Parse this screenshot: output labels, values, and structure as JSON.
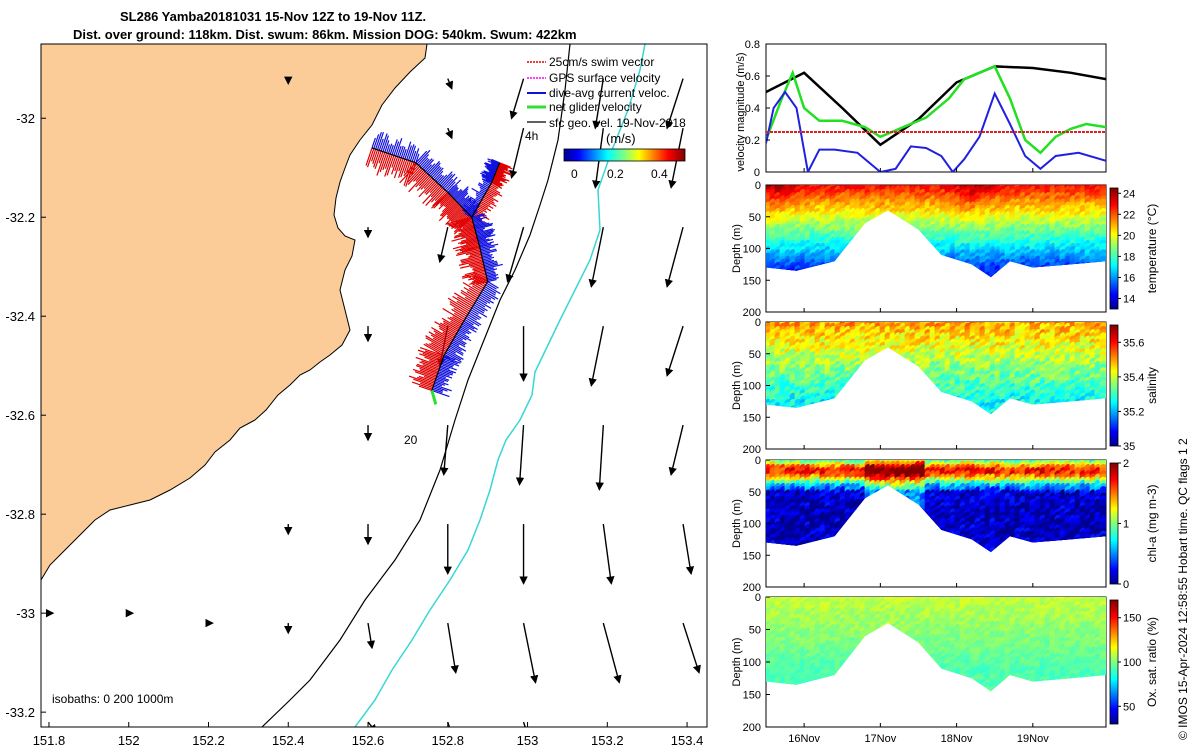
{
  "header": {
    "title_line1": "SL286 Yamba20181031 15-Nov 12Z to 19-Nov 11Z.",
    "title_line2": "Dist. over ground: 118km. Dist. swum: 86km. Mission DOG: 540km. Swum: 422km"
  },
  "credit": "© IMOS 15-Apr-2024 12:58:55 Hobart time. QC flags 1  2",
  "colors": {
    "land": "#fbcb98",
    "isobath_200": "#000000",
    "isobath_1000": "#39d6d6",
    "swim_vector": "#e00000",
    "dive_avg": "#1010e0",
    "net_velocity": "#30e030",
    "gps": "#ff00ff"
  },
  "chart_data": [
    {
      "type": "map",
      "name": "glider track map",
      "xlim": [
        151.78,
        153.45
      ],
      "ylim": [
        -33.23,
        -31.85
      ],
      "x_ticks": [
        "151.8",
        "152",
        "152.2",
        "152.4",
        "152.6",
        "152.8",
        "153",
        "153.2",
        "153.4"
      ],
      "y_ticks": [
        "-32",
        "-32.2",
        "-32.4",
        "-32.6",
        "-32.8",
        "-33",
        "-33.2"
      ],
      "legend": {
        "placement": "top-right",
        "entries": [
          "25cm/s swim vector",
          "GPS surface velocity",
          "dive-avg current veloc.",
          "net glider velocity",
          "sfc geo. vel. 19-Nov-2018"
        ]
      },
      "colorbar": {
        "title": "(m/s)",
        "ticks": [
          "0",
          "0.2",
          "0.4"
        ],
        "range": [
          0,
          0.5
        ]
      },
      "annotations": [
        {
          "text": "4h",
          "lon": 152.97,
          "lat": -32.02
        },
        {
          "text": "20",
          "lon": 152.7,
          "lat": -32.65
        }
      ],
      "isobath_label": "isobaths: 0   200  1000m",
      "track": [
        {
          "lon": 152.61,
          "lat": -32.06
        },
        {
          "lon": 152.72,
          "lat": -32.09
        },
        {
          "lon": 152.8,
          "lat": -32.15
        },
        {
          "lon": 152.86,
          "lat": -32.2
        },
        {
          "lon": 152.88,
          "lat": -32.26
        },
        {
          "lon": 152.9,
          "lat": -32.33
        },
        {
          "lon": 152.84,
          "lat": -32.41
        },
        {
          "lon": 152.79,
          "lat": -32.48
        },
        {
          "lon": 152.76,
          "lat": -32.55
        }
      ],
      "track_branch": [
        {
          "lon": 152.86,
          "lat": -32.2
        },
        {
          "lon": 152.91,
          "lat": -32.13
        },
        {
          "lon": 152.93,
          "lat": -32.09
        }
      ],
      "geostrophic_vectors": [
        {
          "lon": 152.4,
          "lat": -31.92,
          "dlon": 0.0,
          "dlat": -0.01
        },
        {
          "lon": 152.8,
          "lat": -31.92,
          "dlon": 0.01,
          "dlat": -0.02
        },
        {
          "lon": 152.99,
          "lat": -31.92,
          "dlon": -0.03,
          "dlat": -0.08
        },
        {
          "lon": 153.19,
          "lat": -31.92,
          "dlon": -0.02,
          "dlat": -0.1
        },
        {
          "lon": 153.39,
          "lat": -31.92,
          "dlon": -0.04,
          "dlat": -0.1
        },
        {
          "lon": 152.8,
          "lat": -32.02,
          "dlon": 0.01,
          "dlat": -0.02
        },
        {
          "lon": 152.99,
          "lat": -32.02,
          "dlon": -0.03,
          "dlat": -0.1
        },
        {
          "lon": 153.19,
          "lat": -32.02,
          "dlon": -0.02,
          "dlat": -0.12
        },
        {
          "lon": 153.39,
          "lat": -32.02,
          "dlon": -0.03,
          "dlat": -0.12
        },
        {
          "lon": 152.6,
          "lat": -32.22,
          "dlon": 0.0,
          "dlat": -0.02
        },
        {
          "lon": 152.8,
          "lat": -32.22,
          "dlon": -0.02,
          "dlat": -0.07
        },
        {
          "lon": 152.99,
          "lat": -32.22,
          "dlon": -0.04,
          "dlat": -0.11
        },
        {
          "lon": 153.19,
          "lat": -32.22,
          "dlon": -0.03,
          "dlat": -0.12
        },
        {
          "lon": 153.39,
          "lat": -32.22,
          "dlon": -0.04,
          "dlat": -0.12
        },
        {
          "lon": 152.6,
          "lat": -32.42,
          "dlon": 0.0,
          "dlat": -0.03
        },
        {
          "lon": 152.8,
          "lat": -32.42,
          "dlon": -0.02,
          "dlat": -0.08
        },
        {
          "lon": 152.99,
          "lat": -32.42,
          "dlon": 0.0,
          "dlat": -0.11
        },
        {
          "lon": 153.19,
          "lat": -32.42,
          "dlon": -0.03,
          "dlat": -0.12
        },
        {
          "lon": 153.39,
          "lat": -32.42,
          "dlon": -0.04,
          "dlat": -0.1
        },
        {
          "lon": 152.6,
          "lat": -32.62,
          "dlon": 0.0,
          "dlat": -0.03
        },
        {
          "lon": 152.8,
          "lat": -32.62,
          "dlon": -0.01,
          "dlat": -0.1
        },
        {
          "lon": 152.99,
          "lat": -32.62,
          "dlon": -0.01,
          "dlat": -0.12
        },
        {
          "lon": 153.19,
          "lat": -32.62,
          "dlon": -0.01,
          "dlat": -0.13
        },
        {
          "lon": 153.39,
          "lat": -32.62,
          "dlon": -0.03,
          "dlat": -0.1
        },
        {
          "lon": 152.4,
          "lat": -32.82,
          "dlon": 0.0,
          "dlat": -0.02
        },
        {
          "lon": 152.6,
          "lat": -32.82,
          "dlon": 0.0,
          "dlat": -0.04
        },
        {
          "lon": 152.8,
          "lat": -32.82,
          "dlon": 0.0,
          "dlat": -0.1
        },
        {
          "lon": 152.99,
          "lat": -32.82,
          "dlon": 0.0,
          "dlat": -0.12
        },
        {
          "lon": 153.19,
          "lat": -32.82,
          "dlon": 0.02,
          "dlat": -0.12
        },
        {
          "lon": 153.39,
          "lat": -32.82,
          "dlon": 0.02,
          "dlat": -0.1
        },
        {
          "lon": 151.8,
          "lat": -33.0,
          "dlon": 0.01,
          "dlat": 0.0
        },
        {
          "lon": 152.0,
          "lat": -33.0,
          "dlon": 0.01,
          "dlat": 0.0
        },
        {
          "lon": 152.2,
          "lat": -33.02,
          "dlon": 0.01,
          "dlat": 0.0
        },
        {
          "lon": 152.4,
          "lat": -33.02,
          "dlon": 0.0,
          "dlat": -0.02
        },
        {
          "lon": 152.6,
          "lat": -33.02,
          "dlon": 0.01,
          "dlat": -0.05
        },
        {
          "lon": 152.8,
          "lat": -33.02,
          "dlon": 0.02,
          "dlat": -0.1
        },
        {
          "lon": 152.99,
          "lat": -33.02,
          "dlon": 0.03,
          "dlat": -0.12
        },
        {
          "lon": 153.19,
          "lat": -33.02,
          "dlon": 0.04,
          "dlat": -0.12
        },
        {
          "lon": 153.39,
          "lat": -33.02,
          "dlon": 0.04,
          "dlat": -0.1
        },
        {
          "lon": 152.6,
          "lat": -33.22,
          "dlon": 0.02,
          "dlat": -0.02
        },
        {
          "lon": 152.8,
          "lat": -33.22,
          "dlon": 0.02,
          "dlat": -0.05
        },
        {
          "lon": 152.99,
          "lat": -33.22,
          "dlon": 0.02,
          "dlat": -0.05
        }
      ]
    },
    {
      "type": "line",
      "name": "velocity time series",
      "ylabel": "velocity magnitude (m/s)",
      "ylim": [
        0,
        0.8
      ],
      "y_ticks": [
        "0",
        "0.2",
        "0.4",
        "0.6",
        "0.8"
      ],
      "xlim": [
        15.5,
        19.96
      ],
      "x_ticks": [
        "16Nov",
        "17Nov",
        "18Nov",
        "19Nov"
      ],
      "x_tick_values": [
        16,
        17,
        18,
        19
      ],
      "series": [
        {
          "color": "#000000",
          "x": [
            15.5,
            16.0,
            16.5,
            17.0,
            17.5,
            18.0,
            18.5,
            19.0,
            19.5,
            19.96
          ],
          "y": [
            0.5,
            0.62,
            0.4,
            0.17,
            0.33,
            0.56,
            0.66,
            0.65,
            0.62,
            0.58
          ]
        },
        {
          "color": "#22e022",
          "x": [
            15.5,
            15.7,
            15.85,
            16.0,
            16.2,
            16.5,
            16.8,
            17.0,
            17.3,
            17.6,
            17.9,
            18.1,
            18.3,
            18.5,
            18.7,
            18.9,
            19.1,
            19.3,
            19.5,
            19.7,
            19.96
          ],
          "y": [
            0.2,
            0.45,
            0.62,
            0.4,
            0.32,
            0.32,
            0.28,
            0.22,
            0.28,
            0.34,
            0.46,
            0.58,
            0.62,
            0.66,
            0.46,
            0.2,
            0.12,
            0.22,
            0.27,
            0.3,
            0.28
          ]
        },
        {
          "color": "#2020e0",
          "x": [
            15.5,
            15.6,
            15.75,
            15.9,
            16.05,
            16.2,
            16.4,
            16.7,
            17.0,
            17.2,
            17.4,
            17.6,
            17.8,
            17.95,
            18.1,
            18.3,
            18.5,
            18.7,
            18.9,
            19.1,
            19.3,
            19.6,
            19.96
          ],
          "y": [
            0.18,
            0.4,
            0.5,
            0.4,
            0.0,
            0.14,
            0.14,
            0.12,
            0.0,
            0.02,
            0.16,
            0.15,
            0.1,
            0.0,
            0.08,
            0.22,
            0.49,
            0.3,
            0.1,
            0.02,
            0.1,
            0.12,
            0.07
          ]
        },
        {
          "color": "#e02020",
          "x": [
            15.5,
            19.96
          ],
          "y": [
            0.25,
            0.25
          ]
        }
      ]
    },
    {
      "type": "heatmap",
      "name": "temperature section",
      "ylabel": "Depth (m)",
      "colorbar_label": "temperature (°C)",
      "colorbar_ticks": [
        "14",
        "16",
        "18",
        "20",
        "22",
        "24"
      ],
      "ylim": [
        200,
        0
      ],
      "y_ticks": [
        "0",
        "50",
        "100",
        "150",
        "200"
      ],
      "xlim": [
        15.5,
        19.96
      ],
      "x_ticks": [
        "16Nov",
        "17Nov",
        "18Nov",
        "19Nov"
      ],
      "dive_depth_profile": {
        "x": [
          15.5,
          15.9,
          16.4,
          16.8,
          17.1,
          17.5,
          17.8,
          18.2,
          18.45,
          18.7,
          19.0,
          19.5,
          19.96
        ],
        "y": [
          130,
          135,
          120,
          60,
          40,
          70,
          110,
          125,
          145,
          120,
          130,
          125,
          120
        ]
      },
      "surface_value": 23.0,
      "deep_value": 14.5,
      "hot_cores_x": [
        15.65,
        18.25
      ]
    },
    {
      "type": "heatmap",
      "name": "salinity section",
      "ylabel": "Depth (m)",
      "colorbar_label": "salinity",
      "colorbar_ticks": [
        "35",
        "35.2",
        "35.4",
        "35.6"
      ],
      "ylim": [
        200,
        0
      ],
      "y_ticks": [
        "0",
        "50",
        "100",
        "150",
        "200"
      ],
      "xlim": [
        15.5,
        19.96
      ],
      "x_ticks": [
        "16Nov",
        "17Nov",
        "18Nov",
        "19Nov"
      ],
      "dive_depth_profile": {
        "x": [
          15.5,
          15.9,
          16.4,
          16.8,
          17.1,
          17.5,
          17.8,
          18.2,
          18.45,
          18.7,
          19.0,
          19.5,
          19.96
        ],
        "y": [
          130,
          135,
          120,
          60,
          40,
          70,
          110,
          125,
          145,
          120,
          130,
          125,
          120
        ]
      },
      "surface_value": 35.5,
      "deep_value": 35.25
    },
    {
      "type": "heatmap",
      "name": "chlorophyll section",
      "ylabel": "Depth (m)",
      "colorbar_label": "chl-a (mg m-3)",
      "colorbar_ticks": [
        "0",
        "1",
        "2"
      ],
      "ylim": [
        200,
        0
      ],
      "y_ticks": [
        "0",
        "50",
        "100",
        "150",
        "200"
      ],
      "xlim": [
        15.5,
        19.96
      ],
      "x_ticks": [
        "16Nov",
        "17Nov",
        "18Nov",
        "19Nov"
      ],
      "dive_depth_profile": {
        "x": [
          15.5,
          15.9,
          16.4,
          16.8,
          17.1,
          17.5,
          17.8,
          18.2,
          18.45,
          18.7,
          19.0,
          19.5,
          19.96
        ],
        "y": [
          130,
          135,
          120,
          60,
          40,
          70,
          110,
          125,
          145,
          120,
          130,
          125,
          120
        ]
      },
      "max_layer_depth": 20,
      "max_value": 1.9
    },
    {
      "type": "heatmap",
      "name": "oxygen section",
      "ylabel": "Depth (m)",
      "colorbar_label": "Ox. sat. ratio (%)",
      "colorbar_ticks": [
        "50",
        "100",
        "150"
      ],
      "ylim": [
        200,
        0
      ],
      "y_ticks": [
        "0",
        "50",
        "100",
        "150",
        "200"
      ],
      "xlim": [
        15.5,
        19.96
      ],
      "x_ticks": [
        "16Nov",
        "17Nov",
        "18Nov",
        "19Nov"
      ],
      "dive_depth_profile": {
        "x": [
          15.5,
          15.9,
          16.4,
          16.8,
          17.1,
          17.5,
          17.8,
          18.2,
          18.45,
          18.7,
          19.0,
          19.5,
          19.96
        ],
        "y": [
          130,
          135,
          120,
          60,
          40,
          70,
          110,
          125,
          145,
          120,
          130,
          125,
          120
        ]
      },
      "surface_value": 110,
      "deep_value": 92
    }
  ]
}
